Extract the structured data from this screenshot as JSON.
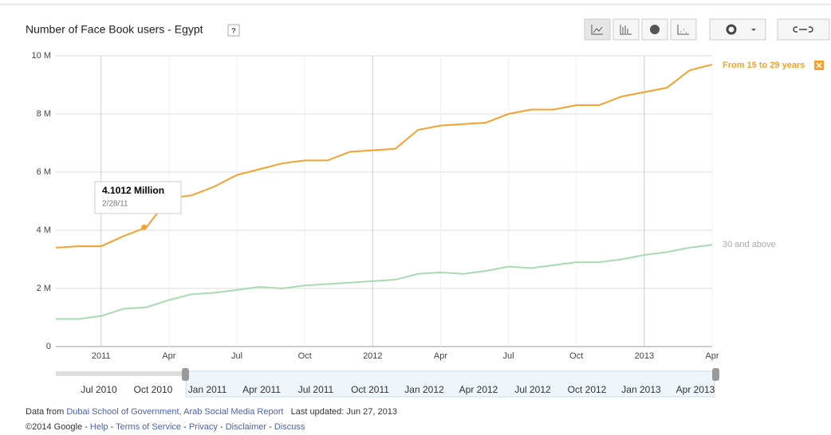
{
  "chart_data": {
    "type": "line",
    "title": "Number of Face Book users - Egypt",
    "help_icon": "?",
    "x": [
      "2010-11",
      "2010-12",
      "2011-01",
      "2011-02",
      "2011-03",
      "2011-04",
      "2011-05",
      "2011-06",
      "2011-07",
      "2011-08",
      "2011-09",
      "2011-10",
      "2011-11",
      "2011-12",
      "2012-01",
      "2012-02",
      "2012-03",
      "2012-04",
      "2012-05",
      "2012-06",
      "2012-07",
      "2012-08",
      "2012-09",
      "2012-10",
      "2012-11",
      "2012-12",
      "2013-01",
      "2013-02",
      "2013-03",
      "2013-04"
    ],
    "series": [
      {
        "name": "From 15 to 29 years",
        "color": "#f5a12c",
        "values": [
          3400000,
          3450000,
          3450000,
          3800000,
          4100000,
          5100000,
          5200000,
          5500000,
          5900000,
          6100000,
          6300000,
          6400000,
          6400000,
          6700000,
          6750000,
          6800000,
          7450000,
          7600000,
          7650000,
          7700000,
          8000000,
          8150000,
          8150000,
          8300000,
          8300000,
          8600000,
          8750000,
          8900000,
          9500000,
          9700000
        ]
      },
      {
        "name": "30 and above",
        "color": "#a9dbb3",
        "values": [
          950000,
          950000,
          1050000,
          1300000,
          1350000,
          1600000,
          1800000,
          1850000,
          1950000,
          2050000,
          2000000,
          2100000,
          2150000,
          2200000,
          2250000,
          2300000,
          2500000,
          2550000,
          2500000,
          2600000,
          2750000,
          2700000,
          2800000,
          2900000,
          2900000,
          3000000,
          3150000,
          3250000,
          3400000,
          3500000
        ]
      }
    ],
    "xlim": [
      "2010-11",
      "2013-04"
    ],
    "xticks": [
      {
        "value": "2011-01",
        "label": "2011"
      },
      {
        "value": "2011-04",
        "label": "Apr"
      },
      {
        "value": "2011-07",
        "label": "Jul"
      },
      {
        "value": "2011-10",
        "label": "Oct"
      },
      {
        "value": "2012-01",
        "label": "2012"
      },
      {
        "value": "2012-04",
        "label": "Apr"
      },
      {
        "value": "2012-07",
        "label": "Jul"
      },
      {
        "value": "2012-10",
        "label": "Oct"
      },
      {
        "value": "2013-01",
        "label": "2013"
      },
      {
        "value": "2013-04",
        "label": "Apr"
      }
    ],
    "ylim": [
      0,
      10000000
    ],
    "yticks": [
      0,
      {
        "value": 2000000,
        "label": "2 M"
      },
      {
        "value": 4000000,
        "label": "4 M"
      },
      {
        "value": 6000000,
        "label": "6 M"
      },
      {
        "value": 8000000,
        "label": "8 M"
      },
      {
        "value": 10000000,
        "label": "10 M"
      }
    ],
    "grid": true,
    "tooltip": {
      "series": 0,
      "x": "2011-02-28",
      "value": 4101200,
      "label": "4.1012 Million",
      "date": "2/28/11"
    }
  },
  "range_selector": {
    "labels": [
      "Jul 2010",
      "Oct 2010",
      "Jan 2011",
      "Apr 2011",
      "Jul 2011",
      "Oct 2011",
      "Jan 2012",
      "Apr 2012",
      "Jul 2012",
      "Oct 2012",
      "Jan 2013",
      "Apr 2013"
    ]
  },
  "footer": {
    "source_prefix": "Data from",
    "source_link": "Dubai School of Government, Arab Social Media Report",
    "updated": "Last updated: Jun 27, 2013",
    "copyright": "©2014 Google",
    "separator": "-",
    "links": [
      "Help",
      "Terms of Service",
      "Privacy",
      "Disclaimer",
      "Discuss"
    ]
  }
}
